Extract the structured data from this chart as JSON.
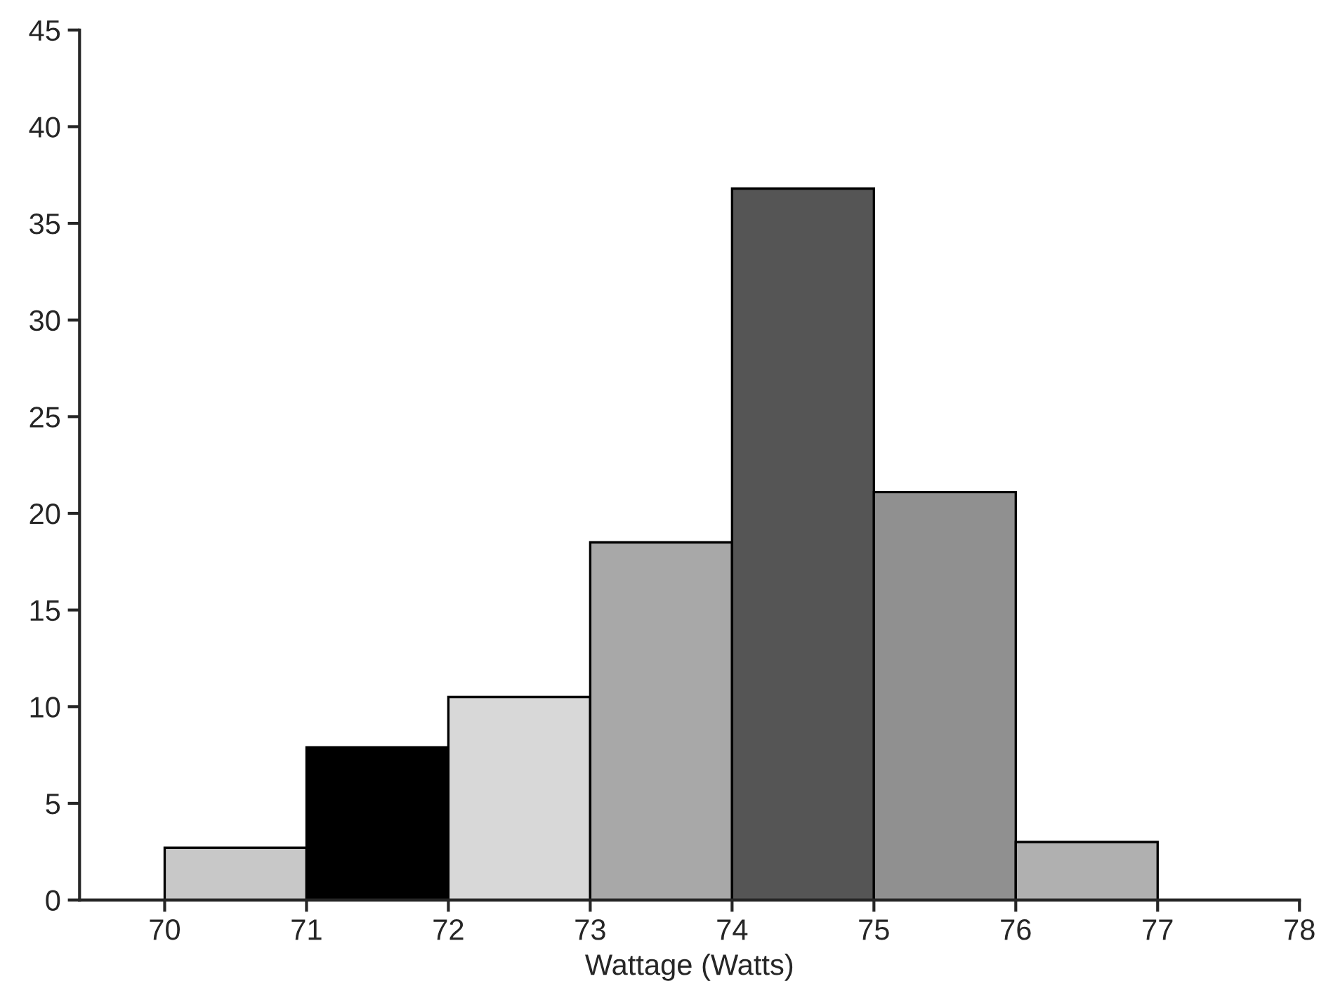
{
  "chart_data": {
    "type": "histogram",
    "xlabel": "Wattage (Watts)",
    "bins": [
      70,
      71,
      72,
      73,
      74,
      75,
      76,
      77
    ],
    "values": [
      2.7,
      7.9,
      10.5,
      18.5,
      36.8,
      21.1,
      3.0
    ],
    "colors": [
      "#c8c8c8",
      "#000000",
      "#d8d8d8",
      "#a8a8a8",
      "#555555",
      "#909090",
      "#b0b0b0"
    ],
    "xlim": [
      69.4,
      78
    ],
    "xticks": [
      70,
      71,
      72,
      73,
      74,
      75,
      76,
      77,
      78
    ],
    "ylim": [
      0,
      45
    ],
    "yticks": [
      0,
      5,
      10,
      15,
      20,
      25,
      30,
      35,
      40,
      45
    ],
    "grid": false,
    "legend": false
  }
}
